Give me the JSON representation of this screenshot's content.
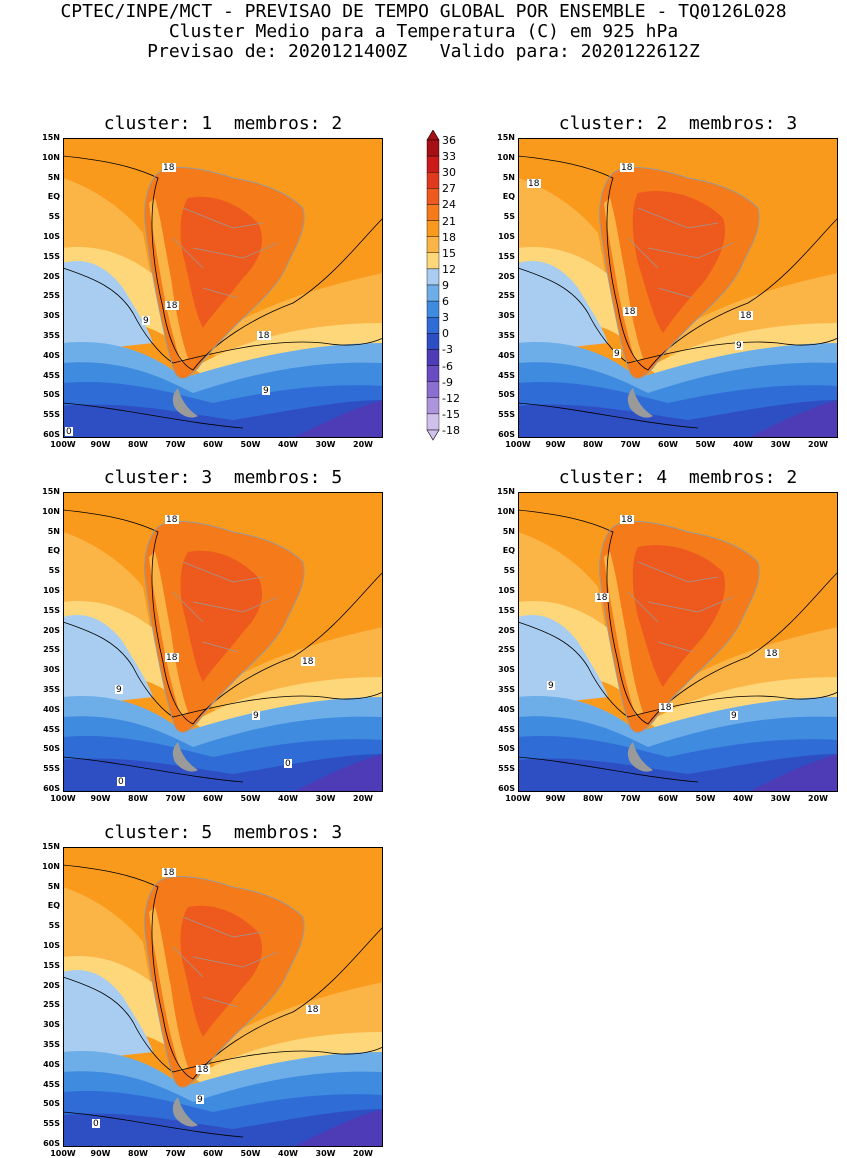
{
  "header": {
    "line1": "CPTEC/INPE/MCT - PREVISAO DE TEMPO GLOBAL POR ENSEMBLE - TQ0126L028",
    "line2": "Cluster Medio para a Temperatura (C) em 925 hPa",
    "line3": "Previsao de: 2020121400Z   Valido para: 2020122612Z"
  },
  "panels": [
    {
      "title": "cluster: 1  membros: 2"
    },
    {
      "title": "cluster: 2  membros: 3"
    },
    {
      "title": "cluster: 3  membros: 5"
    },
    {
      "title": "cluster: 4  membros: 2"
    },
    {
      "title": "cluster: 5  membros: 3"
    }
  ],
  "contour_labels": [
    "18",
    "9",
    "0"
  ],
  "lat_ticks": [
    "15N",
    "10N",
    "5N",
    "EQ",
    "5S",
    "10S",
    "15S",
    "20S",
    "25S",
    "30S",
    "35S",
    "40S",
    "45S",
    "50S",
    "55S",
    "60S"
  ],
  "lon_ticks": [
    "100W",
    "90W",
    "80W",
    "70W",
    "60W",
    "50W",
    "40W",
    "30W",
    "20W"
  ],
  "colorbar": {
    "levels": [
      "36",
      "33",
      "30",
      "27",
      "24",
      "21",
      "18",
      "15",
      "12",
      "9",
      "6",
      "3",
      "0",
      "-3",
      "-6",
      "-9",
      "-12",
      "-15",
      "-18"
    ],
    "colors": [
      "#a50f15",
      "#cb1a1a",
      "#e03a1e",
      "#ee5a1e",
      "#f57a1a",
      "#fa9a1c",
      "#fbb446",
      "#fdd77a",
      "#a8cdf0",
      "#6eaee8",
      "#3f8be0",
      "#2f6cd6",
      "#2e4fc4",
      "#4e3bb6",
      "#6a4cc2",
      "#8a6ed0",
      "#ad95de",
      "#cfc0ec"
    ]
  }
}
